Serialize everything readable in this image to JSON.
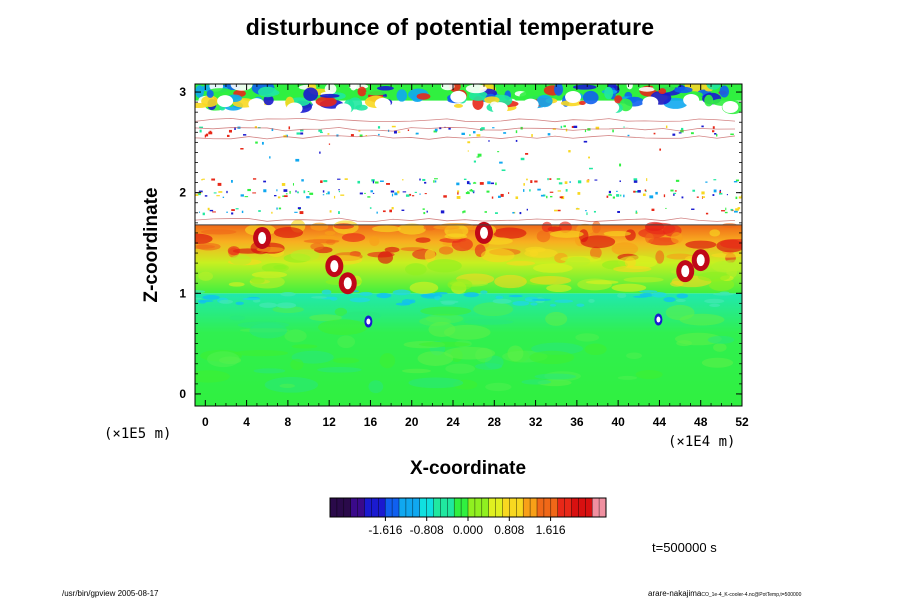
{
  "chart_data": {
    "type": "heatmap",
    "title": "disturbunce of potential temperature",
    "xlabel": "X-coordinate",
    "ylabel": "Z-coordinate",
    "x_scale": "(×1E4 m)",
    "y_scale": "(×1E5 m)",
    "xlim": [
      -1,
      52
    ],
    "ylim": [
      -0.12,
      3.08
    ],
    "x_ticks": [
      "0",
      "4",
      "8",
      "12",
      "16",
      "20",
      "24",
      "28",
      "32",
      "36",
      "40",
      "44",
      "48",
      "52"
    ],
    "y_ticks": [
      "0",
      "1",
      "2",
      "3"
    ],
    "colorbar": {
      "range": [
        -2.7,
        2.7
      ],
      "ticks": [
        "-1.616",
        "-0.808",
        "0.000",
        "0.808",
        "1.616"
      ],
      "tick_values": [
        -1.616,
        -0.808,
        0.0,
        0.808,
        1.616
      ],
      "colors": [
        "#2a0a4a",
        "#3a0a8a",
        "#1a1ad0",
        "#1060f0",
        "#10a8f0",
        "#10e0e0",
        "#20e8a0",
        "#30f040",
        "#90f020",
        "#e0f020",
        "#f8d820",
        "#f8a018",
        "#f06818",
        "#e82818",
        "#d81010",
        "#f090a0"
      ]
    },
    "regions": [
      {
        "x0": -1,
        "x1": 52,
        "z0": -0.12,
        "z1": 1.0,
        "value": -0.1
      },
      {
        "x0": -1,
        "x1": 52,
        "z0": 1.0,
        "z1": 1.68,
        "value": 0.5
      },
      {
        "x0": -1,
        "x1": 52,
        "z0": 1.68,
        "z1": 3.08,
        "value": null
      }
    ]
  },
  "time_label": "t=500000 s",
  "footer": {
    "left": "/usr/bin/gpview 2005-08-17",
    "right": "arare-nakajima",
    "right_small": "CO_1e-4_K-cooler-4.nc@PotTemp,t=500000"
  }
}
